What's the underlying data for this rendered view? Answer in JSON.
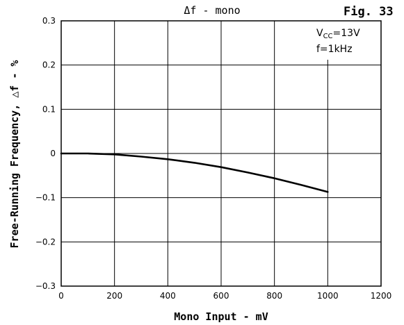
{
  "chart_data": {
    "type": "line",
    "title": "Δf - mono",
    "figure_label": "Fig. 33",
    "xlabel": "Mono Input - mV",
    "ylabel": "Free-Running Frequency, △f - %",
    "xlim": [
      0,
      1200
    ],
    "ylim": [
      -0.3,
      0.3
    ],
    "x_ticks": [
      "0",
      "200",
      "400",
      "600",
      "800",
      "1000",
      "1200"
    ],
    "y_ticks": [
      "0.3",
      "0.2",
      "0.1",
      "0",
      "−0.1",
      "−0.2",
      "−0.3"
    ],
    "grid": true,
    "annotation": {
      "vcc_prefix": "V",
      "vcc_sub": "CC",
      "vcc_value": "=13V",
      "freq": "f=1kHz"
    },
    "series": [
      {
        "x": [
          0,
          100,
          200,
          300,
          400,
          500,
          600,
          700,
          800,
          900,
          1000
        ],
        "y": [
          0,
          0,
          -0.002,
          -0.007,
          -0.013,
          -0.021,
          -0.031,
          -0.043,
          -0.056,
          -0.071,
          -0.087
        ]
      }
    ]
  }
}
